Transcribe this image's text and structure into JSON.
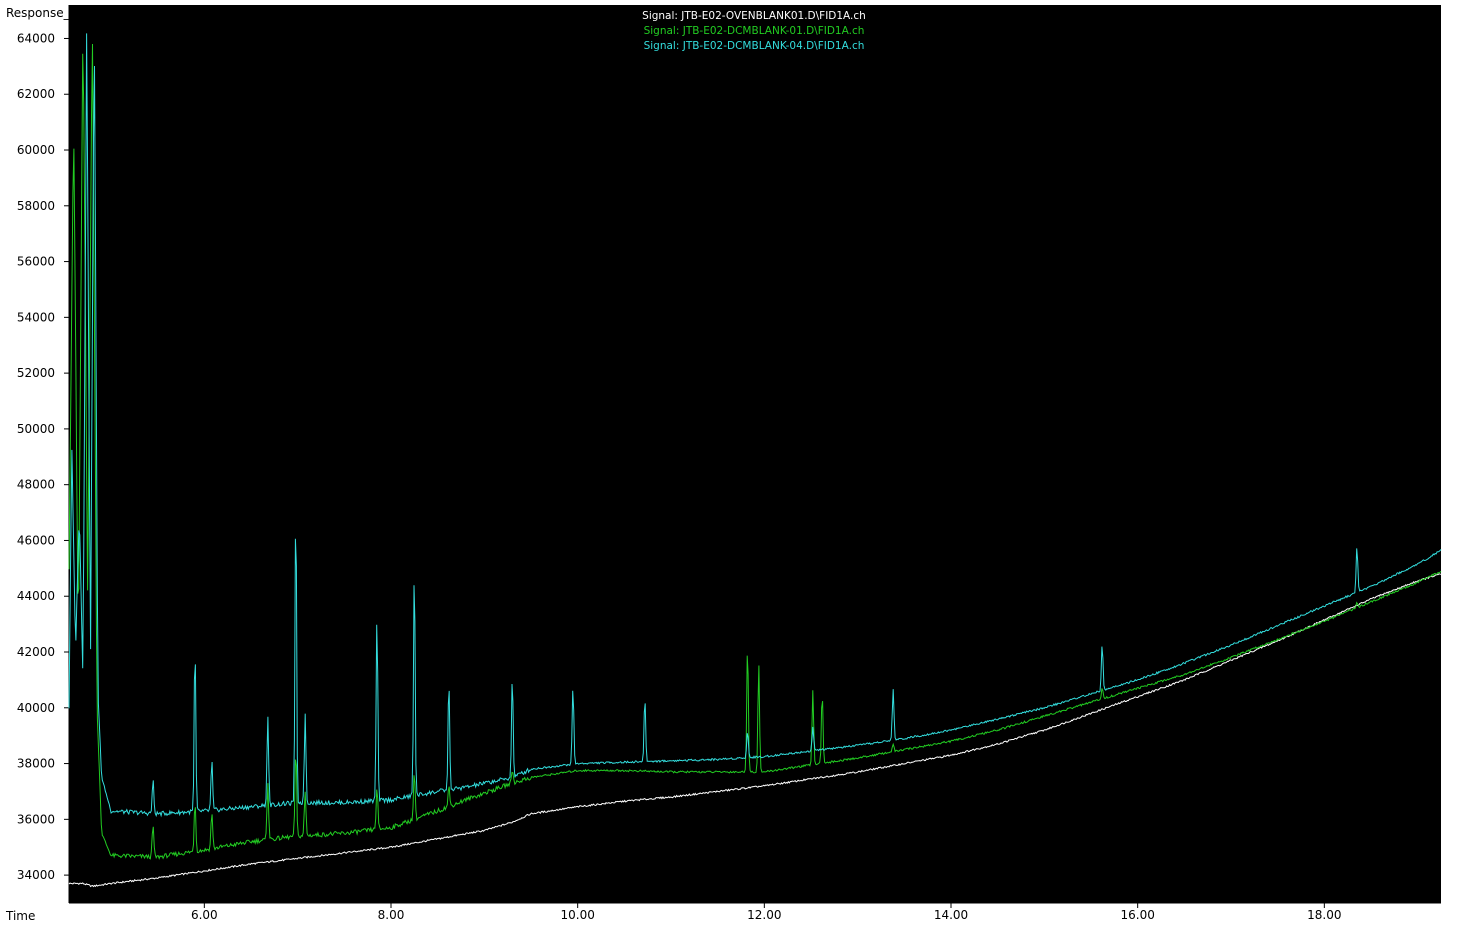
{
  "axis_labels": {
    "y": "Response_",
    "x": "Time"
  },
  "legend": [
    {
      "text": "Signal: JTB-E02-OVENBLANK01.D\\FID1A.ch",
      "color": "#ffffff"
    },
    {
      "text": "Signal: JTB-E02-DCMBLANK-01.D\\FID1A.ch",
      "color": "#22cc22"
    },
    {
      "text": "Signal: JTB-E02-DCMBLANK-04.D\\FID1A.ch",
      "color": "#33dddd"
    }
  ],
  "colors": {
    "plot_background": "#000000",
    "frame": "#ffffff"
  },
  "chart_data": {
    "type": "line",
    "title": "",
    "xlabel": "Time",
    "ylabel": "Response_",
    "xlim": [
      4.55,
      19.25
    ],
    "ylim": [
      33000,
      65200
    ],
    "x_ticks": [
      6.0,
      8.0,
      10.0,
      12.0,
      14.0,
      16.0,
      18.0
    ],
    "x_tick_labels": [
      "6.00",
      "8.00",
      "10.00",
      "12.00",
      "14.00",
      "16.00",
      "18.00"
    ],
    "y_ticks": [
      34000,
      36000,
      38000,
      40000,
      42000,
      44000,
      46000,
      48000,
      50000,
      52000,
      54000,
      56000,
      58000,
      60000,
      62000,
      64000
    ],
    "y_tick_labels": [
      "34000",
      "36000",
      "38000",
      "40000",
      "42000",
      "44000",
      "46000",
      "48000",
      "50000",
      "52000",
      "54000",
      "56000",
      "58000",
      "60000",
      "62000",
      "64000"
    ],
    "legend_position": "top-center",
    "grid": false,
    "series": [
      {
        "name": "Signal: JTB-E02-OVENBLANK01.D\\FID1A.ch",
        "color": "#ffffff",
        "x": [
          4.55,
          4.7,
          4.8,
          5.0,
          5.5,
          6.0,
          6.5,
          7.0,
          7.5,
          8.0,
          8.5,
          9.0,
          9.3,
          9.5,
          10.0,
          10.5,
          11.0,
          11.5,
          12.0,
          12.5,
          13.0,
          13.5,
          14.0,
          14.5,
          15.0,
          15.5,
          16.0,
          16.5,
          17.0,
          17.5,
          18.0,
          18.5,
          19.0,
          19.25
        ],
        "y": [
          33700,
          33700,
          33600,
          33700,
          33900,
          34150,
          34400,
          34600,
          34800,
          35000,
          35300,
          35600,
          35900,
          36200,
          36450,
          36650,
          36800,
          37000,
          37200,
          37450,
          37700,
          38000,
          38300,
          38700,
          39200,
          39800,
          40400,
          41000,
          41700,
          42400,
          43150,
          43900,
          44550,
          44800
        ]
      },
      {
        "name": "Signal: JTB-E02-DCMBLANK-01.D\\FID1A.ch",
        "color": "#22cc22",
        "x": [
          4.55,
          4.6,
          4.65,
          4.7,
          4.75,
          4.8,
          4.85,
          4.9,
          5.0,
          5.5,
          6.0,
          6.5,
          7.0,
          7.5,
          8.0,
          8.5,
          8.8,
          9.3,
          9.5,
          10.0,
          10.5,
          11.0,
          11.5,
          12.0,
          12.5,
          13.0,
          13.5,
          14.0,
          14.5,
          15.0,
          15.5,
          16.0,
          16.5,
          17.0,
          17.5,
          18.0,
          18.5,
          19.0,
          19.25
        ],
        "y": [
          45000,
          61000,
          42000,
          64800,
          44000,
          64800,
          40000,
          35500,
          34700,
          34650,
          34900,
          35200,
          35400,
          35500,
          35700,
          36300,
          36700,
          37300,
          37500,
          37750,
          37750,
          37700,
          37700,
          37700,
          37950,
          38200,
          38500,
          38800,
          39200,
          39700,
          40200,
          40700,
          41200,
          41800,
          42450,
          43100,
          43800,
          44500,
          44900
        ],
        "peak_labels": [],
        "peaks": [
          {
            "x": 5.45,
            "y": 35800
          },
          {
            "x": 5.9,
            "y": 36700
          },
          {
            "x": 6.08,
            "y": 36300
          },
          {
            "x": 6.68,
            "y": 37400
          },
          {
            "x": 6.98,
            "y": 38600
          },
          {
            "x": 7.08,
            "y": 37000
          },
          {
            "x": 7.85,
            "y": 37200
          },
          {
            "x": 8.25,
            "y": 37800
          },
          {
            "x": 8.62,
            "y": 37200
          },
          {
            "x": 9.3,
            "y": 37800
          },
          {
            "x": 11.82,
            "y": 42400
          },
          {
            "x": 11.94,
            "y": 41600
          },
          {
            "x": 12.52,
            "y": 40600
          },
          {
            "x": 12.62,
            "y": 40600
          },
          {
            "x": 13.38,
            "y": 38700
          },
          {
            "x": 15.62,
            "y": 40700
          },
          {
            "x": 18.35,
            "y": 43800
          }
        ]
      },
      {
        "name": "Signal: JTB-E02-DCMBLANK-04.D\\FID1A.ch",
        "color": "#33dddd",
        "x": [
          4.55,
          4.58,
          4.62,
          4.66,
          4.7,
          4.74,
          4.78,
          4.82,
          4.86,
          4.9,
          5.0,
          5.5,
          6.0,
          6.5,
          7.0,
          7.5,
          8.0,
          8.5,
          8.8,
          9.3,
          9.5,
          10.0,
          10.5,
          11.0,
          11.5,
          12.0,
          12.5,
          13.0,
          13.5,
          14.0,
          14.5,
          15.0,
          15.5,
          16.0,
          16.5,
          17.0,
          17.5,
          18.0,
          18.5,
          19.0,
          19.25
        ],
        "y": [
          40000,
          49500,
          42000,
          47000,
          41000,
          64800,
          41500,
          64800,
          40500,
          37500,
          36300,
          36200,
          36300,
          36450,
          36600,
          36600,
          36700,
          37000,
          37150,
          37500,
          37800,
          38000,
          38050,
          38100,
          38150,
          38250,
          38450,
          38650,
          38900,
          39200,
          39600,
          40000,
          40500,
          41000,
          41600,
          42250,
          42950,
          43650,
          44350,
          45150,
          45650
        ],
        "peaks": [
          {
            "x": 5.45,
            "y": 37400
          },
          {
            "x": 5.9,
            "y": 42300
          },
          {
            "x": 6.08,
            "y": 38100
          },
          {
            "x": 6.68,
            "y": 39800
          },
          {
            "x": 6.98,
            "y": 47400
          },
          {
            "x": 7.08,
            "y": 39800
          },
          {
            "x": 7.85,
            "y": 43400
          },
          {
            "x": 8.25,
            "y": 45300
          },
          {
            "x": 8.62,
            "y": 41100
          },
          {
            "x": 9.3,
            "y": 41200
          },
          {
            "x": 9.95,
            "y": 40800
          },
          {
            "x": 10.72,
            "y": 40400
          },
          {
            "x": 11.82,
            "y": 39200
          },
          {
            "x": 12.52,
            "y": 39300
          },
          {
            "x": 13.38,
            "y": 40700
          },
          {
            "x": 15.62,
            "y": 42300
          },
          {
            "x": 18.35,
            "y": 45800
          }
        ]
      }
    ]
  }
}
